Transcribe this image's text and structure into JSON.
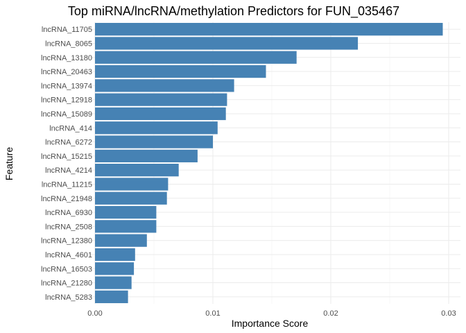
{
  "chart_data": {
    "type": "bar",
    "orientation": "horizontal",
    "title": "Top miRNA/lncRNA/methylation Predictors for FUN_035467",
    "xlabel": "Importance Score",
    "ylabel": "Feature",
    "xlim": [
      0,
      0.0305
    ],
    "xticks": [
      0,
      0.01,
      0.02,
      0.03
    ],
    "xtick_labels": [
      "0.00",
      "0.01",
      "0.02",
      "0.03"
    ],
    "grid": true,
    "bar_color": "#4682b4",
    "categories": [
      "lncRNA_11705",
      "lncRNA_8065",
      "lncRNA_13180",
      "lncRNA_20463",
      "lncRNA_13974",
      "lncRNA_12918",
      "lncRNA_15089",
      "lncRNA_414",
      "lncRNA_6272",
      "lncRNA_15215",
      "lncRNA_4214",
      "lncRNA_11215",
      "lncRNA_21948",
      "lncRNA_6930",
      "lncRNA_2508",
      "lncRNA_12380",
      "lncRNA_4601",
      "lncRNA_16503",
      "lncRNA_21280",
      "lncRNA_5283"
    ],
    "values": [
      0.0295,
      0.0223,
      0.0171,
      0.0145,
      0.0118,
      0.0112,
      0.0111,
      0.0104,
      0.01,
      0.0087,
      0.0071,
      0.0062,
      0.0061,
      0.0052,
      0.0052,
      0.0044,
      0.0034,
      0.0033,
      0.0031,
      0.0028
    ]
  }
}
